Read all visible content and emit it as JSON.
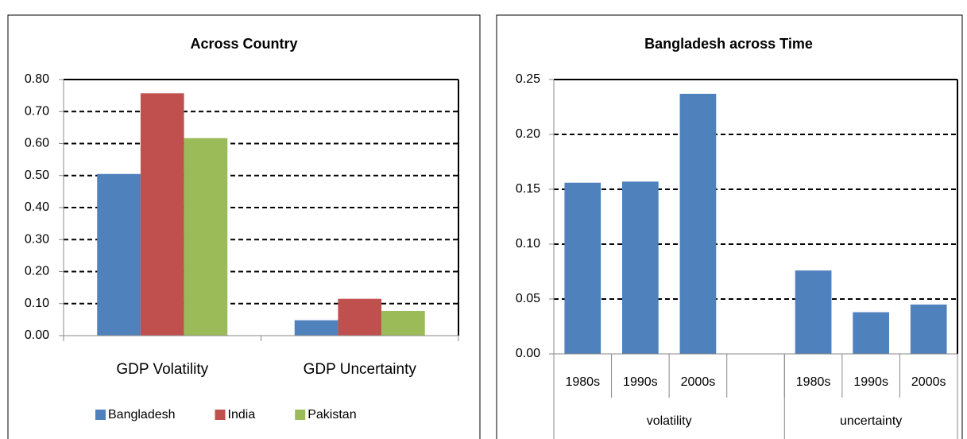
{
  "chart_data": [
    {
      "type": "bar",
      "title": "Across Country",
      "categories": [
        "GDP Volatility",
        "GDP Uncertainty"
      ],
      "series": [
        {
          "name": "Bangladesh",
          "color": "#4f81bd",
          "values": [
            0.505,
            0.048
          ]
        },
        {
          "name": "India",
          "color": "#c0504d",
          "values": [
            0.757,
            0.115
          ]
        },
        {
          "name": "Pakistan",
          "color": "#9bbb59",
          "values": [
            0.617,
            0.077
          ]
        }
      ],
      "ylim": [
        0,
        0.8
      ],
      "yticks": [
        {
          "value": 0,
          "label": "0.00"
        },
        {
          "value": 0.1,
          "label": "0.10"
        },
        {
          "value": 0.2,
          "label": "0.20"
        },
        {
          "value": 0.3,
          "label": "0.30"
        },
        {
          "value": 0.4,
          "label": "0.40"
        },
        {
          "value": 0.5,
          "label": "0.50"
        },
        {
          "value": 0.6,
          "label": "0.60"
        },
        {
          "value": 0.7,
          "label": "0.70"
        },
        {
          "value": 0.8,
          "label": "0.80"
        }
      ],
      "grid": true,
      "legend": "bottom"
    },
    {
      "type": "bar",
      "title": "Bangladesh across Time",
      "categories": [
        "1980s",
        "1990s",
        "2000s",
        null,
        "1980s",
        "1990s",
        "2000s"
      ],
      "groups": [
        {
          "label": "volatility",
          "size": 4
        },
        {
          "label": "uncertainty",
          "size": 3
        }
      ],
      "series": [
        {
          "color": "#4f81bd",
          "values": [
            0.156,
            0.157,
            0.237,
            null,
            0.076,
            0.038,
            0.045
          ]
        }
      ],
      "ylim": [
        0,
        0.25
      ],
      "yticks": [
        {
          "value": 0,
          "label": "0.00"
        },
        {
          "value": 0.05,
          "label": "0.05"
        },
        {
          "value": 0.1,
          "label": "0.10"
        },
        {
          "value": 0.15,
          "label": "0.15"
        },
        {
          "value": 0.2,
          "label": "0.20"
        },
        {
          "value": 0.25,
          "label": "0.25"
        }
      ],
      "grid": true
    }
  ]
}
